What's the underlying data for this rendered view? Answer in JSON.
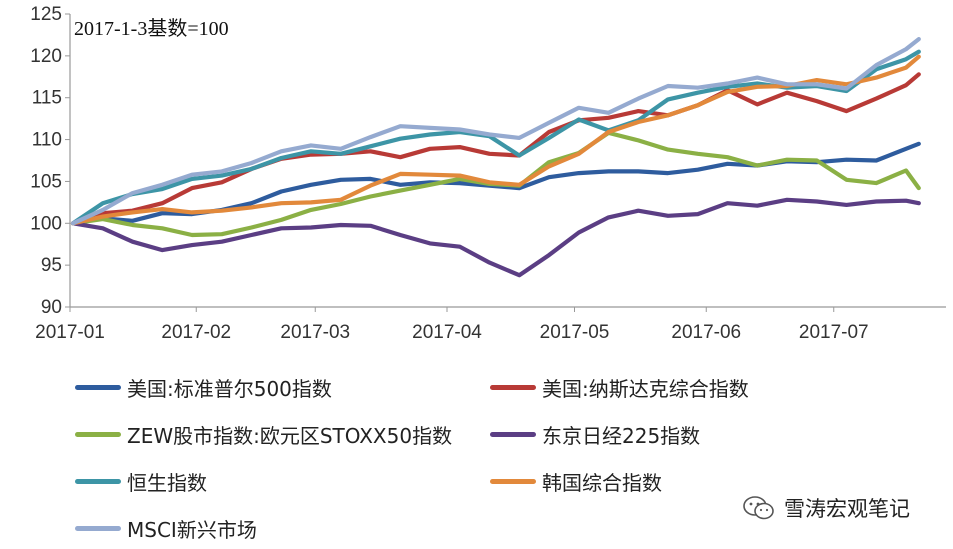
{
  "chart_data": {
    "type": "line",
    "annotation": "2017-1-3基数=100",
    "x_ticks": [
      "2017-01",
      "2017-02",
      "2017-03",
      "2017-04",
      "2017-05",
      "2017-06",
      "2017-07"
    ],
    "ylim": [
      90,
      125
    ],
    "y_ticks": [
      90,
      95,
      100,
      105,
      110,
      115,
      120,
      125
    ],
    "legend_placement": "bottom",
    "grid": false,
    "x": [
      "2017-01-03",
      "2017-01-10",
      "2017-01-17",
      "2017-01-24",
      "2017-01-31",
      "2017-02-07",
      "2017-02-14",
      "2017-02-21",
      "2017-02-28",
      "2017-03-07",
      "2017-03-14",
      "2017-03-21",
      "2017-03-28",
      "2017-04-04",
      "2017-04-11",
      "2017-04-18",
      "2017-04-25",
      "2017-05-02",
      "2017-05-09",
      "2017-05-16",
      "2017-05-23",
      "2017-05-30",
      "2017-06-06",
      "2017-06-13",
      "2017-06-20",
      "2017-06-27",
      "2017-07-04",
      "2017-07-11",
      "2017-07-18",
      "2017-07-21"
    ],
    "series": [
      {
        "name": "美国:标准普尔500指数",
        "color": "#2E5C9E",
        "values": [
          100,
          100.6,
          100.3,
          101.2,
          101.1,
          101.6,
          102.4,
          103.8,
          104.6,
          105.2,
          105.3,
          104.6,
          104.9,
          104.8,
          104.5,
          104.2,
          105.5,
          106.0,
          106.2,
          106.2,
          106.0,
          106.4,
          107.1,
          106.9,
          107.4,
          107.3,
          107.6,
          107.5,
          108.9,
          109.5
        ]
      },
      {
        "name": "美国:纳斯达克综合指数",
        "color": "#B83A36",
        "values": [
          100,
          101.2,
          101.5,
          102.4,
          104.2,
          104.9,
          106.5,
          107.7,
          108.2,
          108.3,
          108.6,
          107.9,
          108.9,
          109.1,
          108.3,
          108.1,
          110.9,
          112.3,
          112.6,
          113.4,
          112.9,
          114.1,
          115.9,
          114.2,
          115.6,
          114.6,
          113.4,
          114.9,
          116.5,
          117.8
        ]
      },
      {
        "name": "ZEW股市指数:欧元区STOXX50指数",
        "color": "#8BB045",
        "values": [
          100,
          100.5,
          99.8,
          99.4,
          98.6,
          98.7,
          99.5,
          100.4,
          101.6,
          102.3,
          103.2,
          103.9,
          104.6,
          105.3,
          104.7,
          104.5,
          107.3,
          108.4,
          110.8,
          109.9,
          108.8,
          108.3,
          107.9,
          106.9,
          107.6,
          107.5,
          105.2,
          104.8,
          106.3,
          104.2
        ]
      },
      {
        "name": "东京日经225指数",
        "color": "#5B3E84",
        "values": [
          100,
          99.4,
          97.8,
          96.8,
          97.4,
          97.8,
          98.6,
          99.4,
          99.5,
          99.8,
          99.7,
          98.6,
          97.6,
          97.2,
          95.3,
          93.8,
          96.2,
          98.9,
          100.7,
          101.5,
          100.9,
          101.1,
          102.4,
          102.1,
          102.8,
          102.6,
          102.2,
          102.6,
          102.7,
          102.4
        ]
      },
      {
        "name": "恒生指数",
        "color": "#3D95A6",
        "values": [
          100,
          102.4,
          103.5,
          104.1,
          105.3,
          105.7,
          106.5,
          107.8,
          108.6,
          108.3,
          109.2,
          110.1,
          110.6,
          110.9,
          110.4,
          108.1,
          110.2,
          112.4,
          111.1,
          112.3,
          114.8,
          115.6,
          116.3,
          116.7,
          116.2,
          116.4,
          115.8,
          118.4,
          119.6,
          120.5
        ]
      },
      {
        "name": "韩国综合指数",
        "color": "#E2893B",
        "values": [
          100,
          100.8,
          101.3,
          101.7,
          101.3,
          101.5,
          101.9,
          102.4,
          102.5,
          102.8,
          104.5,
          105.9,
          105.8,
          105.7,
          104.9,
          104.6,
          106.8,
          108.3,
          110.9,
          112.1,
          112.9,
          114.1,
          115.7,
          116.3,
          116.4,
          117.1,
          116.6,
          117.4,
          118.6,
          119.9
        ]
      },
      {
        "name": "MSCI新兴市场",
        "color": "#95AAD0",
        "values": [
          100,
          101.6,
          103.6,
          104.6,
          105.8,
          106.2,
          107.2,
          108.6,
          109.3,
          108.9,
          110.3,
          111.6,
          111.4,
          111.2,
          110.6,
          110.2,
          112.0,
          113.8,
          113.2,
          114.9,
          116.4,
          116.2,
          116.7,
          117.4,
          116.6,
          116.6,
          116.1,
          118.9,
          120.8,
          122.0
        ]
      }
    ]
  },
  "legend": {
    "items": [
      {
        "label": "美国:标准普尔500指数",
        "color": "#2E5C9E"
      },
      {
        "label": "美国:纳斯达克综合指数",
        "color": "#B83A36"
      },
      {
        "label": "ZEW股市指数:欧元区STOXX50指数",
        "color": "#8BB045"
      },
      {
        "label": "东京日经225指数",
        "color": "#5B3E84"
      },
      {
        "label": "恒生指数",
        "color": "#3D95A6"
      },
      {
        "label": "韩国综合指数",
        "color": "#E2893B"
      },
      {
        "label": "MSCI新兴市场",
        "color": "#95AAD0"
      }
    ]
  },
  "watermark": {
    "text": "雪涛宏观笔记",
    "icon": "wechat-icon"
  }
}
